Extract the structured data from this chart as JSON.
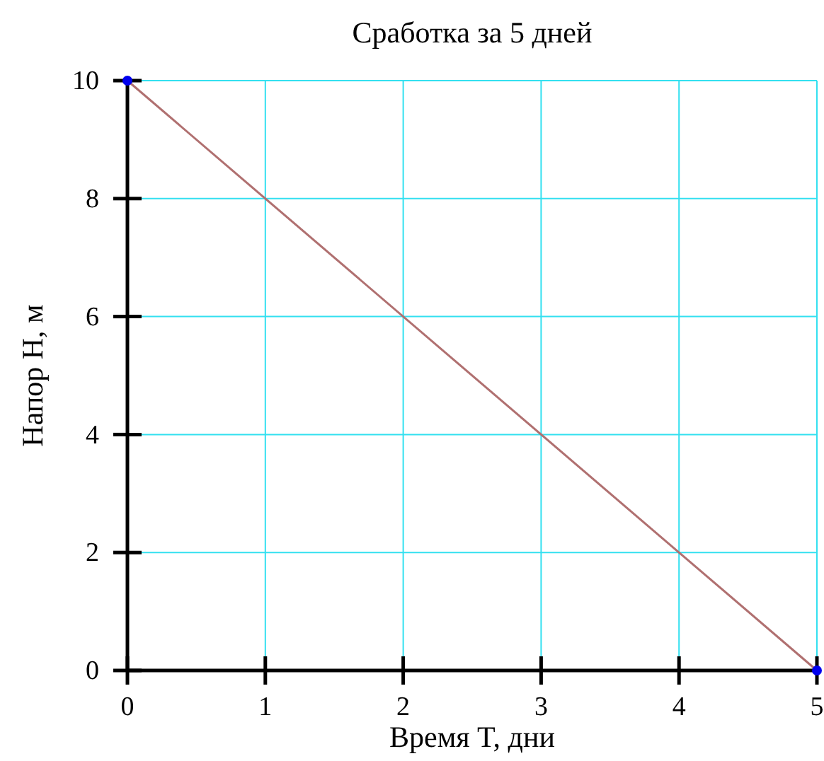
{
  "chart_data": {
    "type": "line",
    "title": "Сработка за 5 дней",
    "xlabel": "Время T, дни",
    "ylabel": "Напор H, м",
    "x": [
      0,
      5
    ],
    "series": [
      {
        "color": "#b07070",
        "values": [
          10,
          0
        ]
      },
      {
        "type": "scatter",
        "color": "#0000ee",
        "x": [
          0,
          5
        ],
        "values": [
          10,
          0
        ],
        "marker": "circle"
      }
    ],
    "xlim": [
      0,
      5
    ],
    "ylim": [
      0,
      10
    ],
    "xticks": [
      0,
      1,
      2,
      3,
      4,
      5
    ],
    "yticks": [
      0,
      2,
      4,
      6,
      8,
      10
    ],
    "grid": true
  }
}
